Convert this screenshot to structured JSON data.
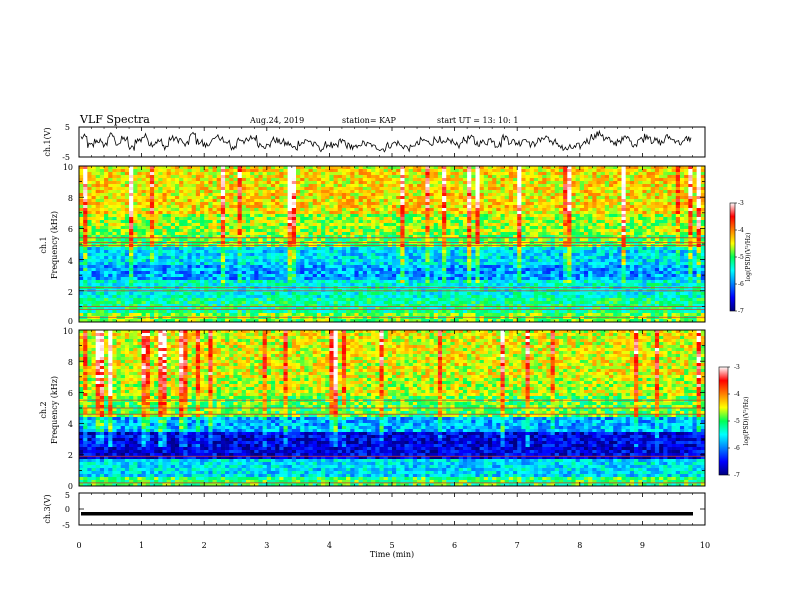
{
  "header": {
    "title": "VLF Spectra",
    "date": "Aug.24, 2019",
    "station": "station= KAP",
    "start": "start  UT =   13: 10: 1"
  },
  "chart_data": [
    {
      "type": "line",
      "panel": "ch1-waveform",
      "ylabel": "ch.1(V)",
      "ylim": [
        -5,
        5
      ],
      "yticks": [
        "5",
        "-5"
      ],
      "xlim": [
        0,
        10
      ],
      "color": "#000000",
      "y": [
        1.5,
        -1.2,
        0.4,
        -0.8,
        2.1,
        -0.3,
        1.0,
        -2.0,
        0.6,
        1.8,
        -0.5,
        0.2,
        -1.5,
        1.1,
        0.8,
        -0.9,
        2.4,
        0.1,
        -1.1,
        0.5,
        1.6,
        -0.4,
        -1.8,
        0.9,
        0.3,
        1.4,
        -0.7,
        -1.3,
        0.7,
        0.0,
        -0.6,
        -1.9,
        -0.2,
        0.4,
        -1.0,
        -2.2,
        -0.8,
        -1.6,
        0.2,
        -1.2,
        -2.0,
        -0.5,
        -0.9,
        -1.7,
        -2.3,
        -1.1,
        -0.3,
        -1.4,
        -2.1,
        -0.7,
        0.5,
        -0.2,
        0.9,
        -0.6,
        0.3,
        -1.0,
        0.6,
        1.2,
        -0.4,
        -0.1,
        0.8,
        -0.9,
        1.5,
        0.2,
        -0.3,
        1.0,
        -0.8,
        0.4,
        1.7,
        0.1,
        -1.2,
        -2.4,
        -1.9,
        -1.4,
        0.3,
        1.9,
        2.6,
        1.1,
        -0.5,
        0.6,
        1.3,
        -0.6,
        0.9,
        2.0,
        0.4,
        -0.2,
        1.6,
        0.7,
        -0.3,
        1.1
      ]
    },
    {
      "type": "heatmap",
      "panel": "ch1-spectrogram",
      "ylabel": "Frequency (kHz)",
      "side_label": "ch.1",
      "xlim": [
        0,
        10
      ],
      "ylim": [
        0,
        10
      ],
      "yticks": [
        "0",
        "2",
        "4",
        "6",
        "8",
        "10"
      ],
      "colorbar": {
        "label": "log(PSD)(V²/Hz)",
        "ticks": [
          "-3",
          "-4",
          "-5",
          "-6",
          "-7"
        ],
        "range": [
          -7,
          -3
        ]
      },
      "bands": [
        {
          "f": [
            0.0,
            0.6
          ],
          "level": -4.8
        },
        {
          "f": [
            0.6,
            1.6
          ],
          "level": -5.2
        },
        {
          "f": [
            1.6,
            2.6
          ],
          "level": -5.4
        },
        {
          "f": [
            2.6,
            3.6
          ],
          "level": -5.9
        },
        {
          "f": [
            3.6,
            4.8
          ],
          "level": -5.6
        },
        {
          "f": [
            4.8,
            5.6
          ],
          "level": -4.9
        },
        {
          "f": [
            5.6,
            7.0
          ],
          "level": -4.7
        },
        {
          "f": [
            7.0,
            10.0
          ],
          "level": -4.4
        }
      ],
      "lines_khz": [
        0.3,
        0.8,
        1.0,
        2.0,
        2.2,
        4.9,
        5.1,
        5.4
      ]
    },
    {
      "type": "heatmap",
      "panel": "ch2-spectrogram",
      "ylabel": "Frequency (kHz)",
      "side_label": "ch.2",
      "xlim": [
        0,
        10
      ],
      "ylim": [
        0,
        10
      ],
      "yticks": [
        "0",
        "2",
        "4",
        "6",
        "8",
        "10"
      ],
      "colorbar": {
        "label": "log(PSD)(V²/Hz)",
        "ticks": [
          "-3",
          "-4",
          "-5",
          "-6",
          "-7"
        ],
        "range": [
          -7,
          -3
        ]
      },
      "bands": [
        {
          "f": [
            0.0,
            0.6
          ],
          "level": -5.0
        },
        {
          "f": [
            0.6,
            1.8
          ],
          "level": -5.6
        },
        {
          "f": [
            1.8,
            3.4
          ],
          "level": -6.6
        },
        {
          "f": [
            3.4,
            4.4
          ],
          "level": -5.8
        },
        {
          "f": [
            4.4,
            5.8
          ],
          "level": -4.9
        },
        {
          "f": [
            5.8,
            7.0
          ],
          "level": -4.6
        },
        {
          "f": [
            7.0,
            10.0
          ],
          "level": -4.5
        }
      ],
      "lines_khz": [
        0.2,
        1.9,
        4.6,
        5.0,
        5.5
      ]
    },
    {
      "type": "line",
      "panel": "ch3-waveform",
      "ylabel": "ch.3(V)",
      "ylim": [
        -5,
        5
      ],
      "yticks": [
        "5",
        "0",
        "-5"
      ],
      "xlim": [
        0,
        10
      ],
      "xlabel": "Time (min)",
      "xticks": [
        "0",
        "1",
        "2",
        "3",
        "4",
        "5",
        "6",
        "7",
        "8",
        "9",
        "10"
      ],
      "constant_value": -1.5,
      "color": "#000000"
    }
  ]
}
